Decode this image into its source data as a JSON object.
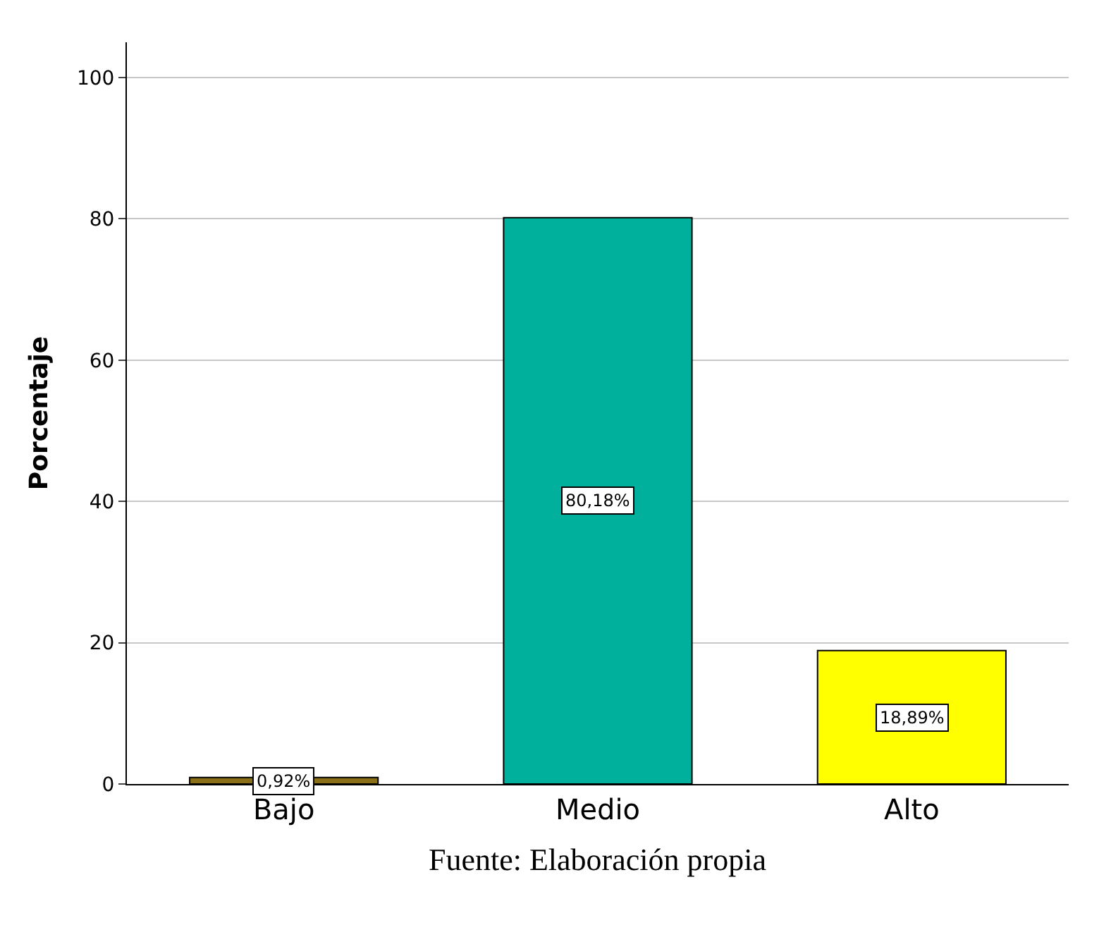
{
  "chart_data": {
    "type": "bar",
    "ylabel": "Porcentaje",
    "categories": [
      "Bajo",
      "Medio",
      "Alto"
    ],
    "values": [
      0.92,
      80.18,
      18.89
    ],
    "colors": [
      "#8b6f17",
      "#00b09c",
      "#ffff00"
    ],
    "value_labels": [
      "0,92%",
      "80,18%",
      "18,89%"
    ],
    "ylim": [
      0,
      105
    ],
    "yticks": [
      0,
      20,
      40,
      60,
      80,
      100
    ],
    "grid": "y",
    "annotations": [
      "Fuente: Elaboración propia"
    ]
  }
}
